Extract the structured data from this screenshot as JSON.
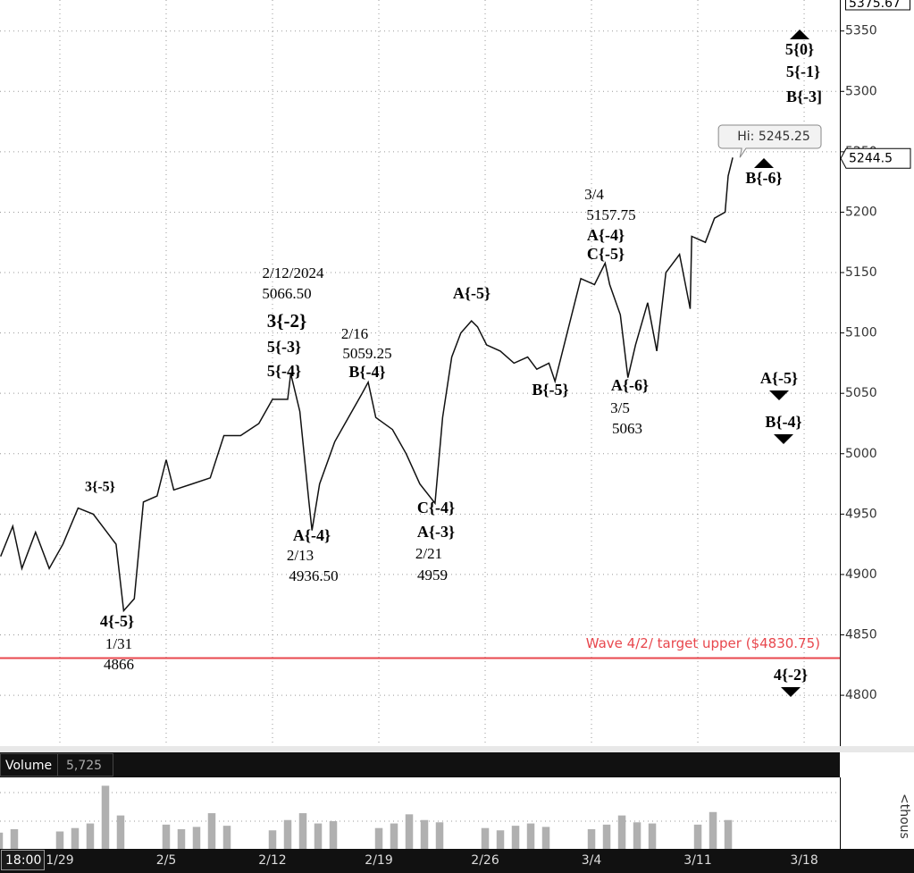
{
  "chart_data": {
    "type": "line",
    "series": [
      {
        "name": "Price",
        "color": "#111111",
        "x": [
          -3.9,
          -3.1,
          -2.5,
          -1.6,
          -0.7,
          0.2,
          1.2,
          2.2,
          3.1,
          3.7,
          4.2,
          4.9,
          5.5,
          6.4,
          7.0,
          7.5,
          8.7,
          9.9,
          10.8,
          11.9,
          13.1,
          14.0,
          15.0,
          15.2,
          15.8,
          16.4,
          16.6,
          17.1,
          18.1,
          19.0,
          19.9,
          20.3,
          20.8,
          21.9,
          22.8,
          23.7,
          24.7,
          25.2,
          25.8,
          26.4,
          27.1,
          27.5,
          28.1,
          29.0,
          29.9,
          30.8,
          31.4,
          32.2,
          32.6,
          33.4,
          34.3,
          35.2,
          35.9,
          36.2,
          36.9,
          37.4,
          37.9,
          38.7,
          39.3,
          39.9,
          40.8,
          41.5,
          41.6,
          42.5,
          43.1,
          43.8,
          44.0,
          44.3
        ],
        "values": [
          4915,
          4940,
          4905,
          4935,
          4905,
          4925,
          4955,
          4950,
          4935,
          4925,
          4870,
          4880,
          4960,
          4965,
          4995,
          4970,
          4975,
          4980,
          5015,
          5015,
          5025,
          5045,
          5045,
          5066.5,
          5035,
          4960,
          4936.5,
          4975,
          5010,
          5030,
          5050,
          5059.25,
          5030,
          5020,
          5000,
          4975,
          4959,
          5030,
          5080,
          5100,
          5110,
          5105,
          5090,
          5085,
          5075,
          5080,
          5070,
          5075,
          5060,
          5100,
          5145,
          5140,
          5157.75,
          5140,
          5115,
          5063,
          5090,
          5125,
          5085,
          5150,
          5165,
          5120,
          5180,
          5175,
          5195,
          5200,
          5230,
          5245.25
        ]
      }
    ],
    "xlim": [
      -3.94,
      51.35
    ],
    "xticks": [
      {
        "value": 0,
        "label": "1/29"
      },
      {
        "value": 7,
        "label": "2/5"
      },
      {
        "value": 14,
        "label": "2/12"
      },
      {
        "value": 21,
        "label": "2/19"
      },
      {
        "value": 28,
        "label": "2/26"
      },
      {
        "value": 35,
        "label": "3/4"
      },
      {
        "value": 42,
        "label": "3/11"
      },
      {
        "value": 49,
        "label": "3/18"
      }
    ],
    "time_label": "18:00",
    "ylim": [
      4757.9,
      5375.67
    ],
    "yticks": [
      4800,
      4850,
      4900,
      4950,
      5000,
      5050,
      5100,
      5150,
      5200,
      5250,
      5300,
      5350
    ],
    "grid": true,
    "last_price": 5244.5,
    "high_label": "Hi: 5245.25",
    "reference_line": {
      "value": 4830.75,
      "label": "Wave 4/2/ target upper ($4830.75)",
      "color": "#e8474d"
    },
    "annotations": [
      {
        "text": "3{-5}",
        "style": "wave-small"
      },
      {
        "text": "4{-5}",
        "style": "wave"
      },
      {
        "text": "1/31",
        "style": "note"
      },
      {
        "text": "4866",
        "style": "note"
      },
      {
        "text": "2/12/2024",
        "style": "note"
      },
      {
        "text": "5066.50",
        "style": "note"
      },
      {
        "text": "3{-2}",
        "style": "wave-large"
      },
      {
        "text": "5{-3}",
        "style": "wave"
      },
      {
        "text": "5{-4}",
        "style": "wave"
      },
      {
        "text": "2/16",
        "style": "note"
      },
      {
        "text": "5059.25",
        "style": "note"
      },
      {
        "text": "B{-4}",
        "style": "wave"
      },
      {
        "text": "A{-4}",
        "style": "wave"
      },
      {
        "text": "2/13",
        "style": "note"
      },
      {
        "text": "4936.50",
        "style": "note"
      },
      {
        "text": "C{-4}",
        "style": "wave"
      },
      {
        "text": "A{-3}",
        "style": "wave"
      },
      {
        "text": "2/21",
        "style": "note"
      },
      {
        "text": "4959",
        "style": "note"
      },
      {
        "text": "A{-5}",
        "style": "wave"
      },
      {
        "text": "B{-5}",
        "style": "wave"
      },
      {
        "text": "3/4",
        "style": "note"
      },
      {
        "text": "5157.75",
        "style": "note"
      },
      {
        "text": "A{-4}",
        "style": "wave"
      },
      {
        "text": "C{-5}",
        "style": "wave"
      },
      {
        "text": "A{-6}",
        "style": "wave"
      },
      {
        "text": "3/5",
        "style": "note"
      },
      {
        "text": "5063",
        "style": "note"
      },
      {
        "text": "B{-6}",
        "style": "wave",
        "marker": "up"
      },
      {
        "text": "5{0}",
        "style": "wave",
        "marker": "up"
      },
      {
        "text": "5{-1}",
        "style": "wave"
      },
      {
        "text": "B{-3]",
        "style": "wave"
      },
      {
        "text": "A{-5}",
        "style": "wave",
        "marker": "down"
      },
      {
        "text": "B{-4}",
        "style": "wave",
        "marker": "down"
      },
      {
        "text": "4{-2}",
        "style": "wave",
        "marker": "down"
      }
    ],
    "volume": {
      "title": "Volume",
      "last_label": "5,725",
      "unit": "<thous",
      "color": "#b0b0b0",
      "x": [
        -4,
        -3,
        -2,
        -1,
        0,
        1,
        2,
        3,
        4,
        5,
        6,
        7,
        8,
        9,
        10,
        11,
        12,
        13,
        14,
        15,
        16,
        17,
        18,
        19,
        20,
        21,
        22,
        23,
        24,
        25,
        26,
        27,
        28,
        29,
        30,
        31,
        32,
        33,
        34,
        35,
        36,
        37,
        38,
        39,
        40,
        41,
        42,
        43,
        44
      ],
      "values": [
        150,
        180,
        null,
        null,
        160,
        190,
        230,
        560,
        300,
        null,
        null,
        220,
        180,
        200,
        320,
        210,
        null,
        null,
        170,
        260,
        320,
        230,
        250,
        null,
        null,
        190,
        230,
        310,
        260,
        240,
        null,
        null,
        190,
        170,
        210,
        230,
        200,
        null,
        null,
        180,
        220,
        300,
        240,
        230,
        null,
        null,
        220,
        330,
        260
      ],
      "ylim": [
        0,
        633
      ],
      "yticks": [
        0,
        250,
        500
      ]
    }
  }
}
